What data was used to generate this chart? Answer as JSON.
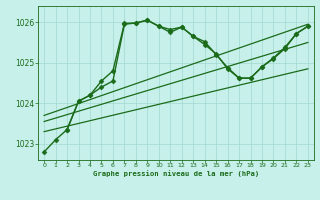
{
  "title": "Graphe pression niveau de la mer (hPa)",
  "bg_color": "#c8f0ea",
  "grid_color": "#a0d8d0",
  "line_color": "#1a6b1a",
  "ylim": [
    1022.6,
    1026.4
  ],
  "xlim": [
    -0.5,
    23.5
  ],
  "yticks": [
    1023,
    1024,
    1025,
    1026
  ],
  "xticks": [
    0,
    1,
    2,
    3,
    4,
    5,
    6,
    7,
    8,
    9,
    10,
    11,
    12,
    13,
    14,
    15,
    16,
    17,
    18,
    19,
    20,
    21,
    22,
    23
  ],
  "series": [
    {
      "x": [
        0,
        1,
        2,
        3,
        4,
        5,
        6,
        7,
        8,
        9,
        10,
        11,
        12,
        13,
        14,
        15,
        16,
        17,
        18,
        19,
        20,
        21,
        22,
        23
      ],
      "y": [
        1022.8,
        1023.1,
        1023.35,
        1024.05,
        1024.2,
        1024.55,
        1024.8,
        1025.97,
        1025.98,
        1026.05,
        1025.9,
        1025.75,
        1025.88,
        1025.65,
        1025.52,
        1025.2,
        1024.88,
        1024.62,
        1024.62,
        1024.9,
        1025.1,
        1025.35,
        1025.72,
        1025.9
      ],
      "marker": "D",
      "markersize": 2.5,
      "linewidth": 1.0
    },
    {
      "x": [
        2,
        3,
        4,
        5,
        6,
        7,
        8,
        9,
        10,
        11,
        12,
        13,
        14,
        15,
        16,
        17,
        18,
        19,
        20,
        21,
        22,
        23
      ],
      "y": [
        1023.35,
        1024.05,
        1024.2,
        1024.4,
        1024.55,
        1025.95,
        1025.98,
        1026.05,
        1025.9,
        1025.82,
        1025.88,
        1025.65,
        1025.45,
        1025.22,
        1024.85,
        1024.62,
        1024.62,
        1024.9,
        1025.12,
        1025.38,
        1025.72,
        1025.9
      ],
      "marker": "D",
      "markersize": 2.5,
      "linewidth": 1.0
    },
    {
      "x": [
        0,
        23
      ],
      "y": [
        1023.3,
        1024.85
      ],
      "marker": null,
      "linewidth": 0.9
    },
    {
      "x": [
        0,
        23
      ],
      "y": [
        1023.55,
        1025.5
      ],
      "marker": null,
      "linewidth": 0.9
    },
    {
      "x": [
        0,
        23
      ],
      "y": [
        1023.7,
        1025.95
      ],
      "marker": null,
      "linewidth": 0.9
    }
  ]
}
